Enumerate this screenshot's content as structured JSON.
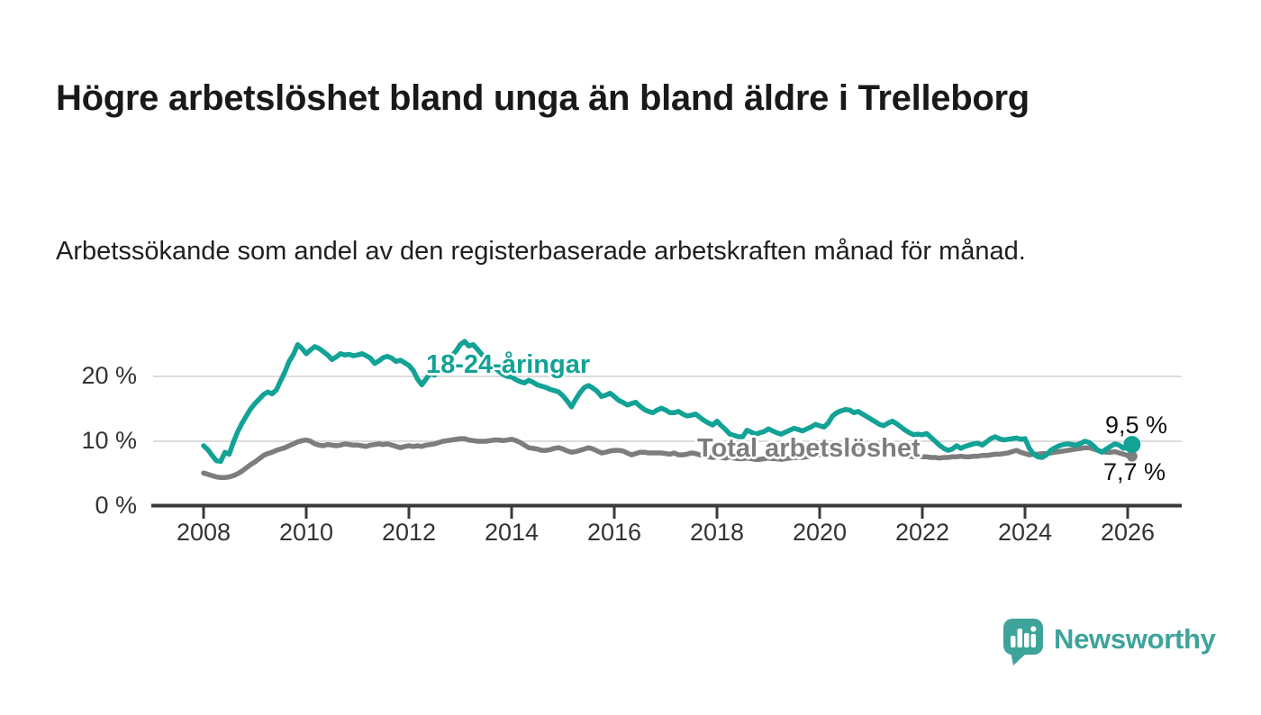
{
  "title": "Högre arbetslöshet bland unga än bland äldre i Trelleborg",
  "subtitle": "Arbetssökande som andel av den registerbaserade arbetskraften månad för månad.",
  "chart_data": {
    "type": "line",
    "title": "Högre arbetslöshet bland unga än bland äldre i Trelleborg",
    "subtitle": "Arbetssökande som andel av den registerbaserade arbetskraften månad för månad.",
    "unit": "%",
    "x_monthly_start": "2008-01",
    "x_monthly_end": "2026-02",
    "x_tick_years": [
      2008,
      2010,
      2012,
      2014,
      2016,
      2018,
      2020,
      2022,
      2024,
      2026
    ],
    "y_ticks": [
      {
        "value": 0,
        "label": "0 %"
      },
      {
        "value": 10,
        "label": "10 %"
      },
      {
        "value": 20,
        "label": "20 %"
      }
    ],
    "ylim": [
      0,
      27
    ],
    "grid": "horizontal-only",
    "legend_position": "inline-labels",
    "colors": {
      "grid": "#dcdcdc",
      "axis": "#3a3a3a",
      "tick_text": "#333333"
    },
    "series": [
      {
        "name": "Total arbetslöshet",
        "color": "#7d7d7d",
        "end_value_label": "7,7 %",
        "end_dot": true,
        "values": [
          5.1,
          4.9,
          4.7,
          4.5,
          4.4,
          4.4,
          4.5,
          4.7,
          5.0,
          5.4,
          5.9,
          6.4,
          6.8,
          7.3,
          7.8,
          8.1,
          8.3,
          8.6,
          8.8,
          9.0,
          9.3,
          9.6,
          9.9,
          10.1,
          10.2,
          10.0,
          9.6,
          9.4,
          9.3,
          9.5,
          9.4,
          9.3,
          9.4,
          9.6,
          9.5,
          9.4,
          9.4,
          9.3,
          9.2,
          9.4,
          9.5,
          9.6,
          9.5,
          9.6,
          9.4,
          9.2,
          9.0,
          9.2,
          9.3,
          9.2,
          9.3,
          9.2,
          9.4,
          9.5,
          9.6,
          9.8,
          10.0,
          10.1,
          10.2,
          10.3,
          10.4,
          10.4,
          10.2,
          10.1,
          10.0,
          10.0,
          10.0,
          10.1,
          10.2,
          10.2,
          10.1,
          10.2,
          10.3,
          10.1,
          9.8,
          9.4,
          9.0,
          8.9,
          8.8,
          8.6,
          8.6,
          8.7,
          8.9,
          9.0,
          8.8,
          8.5,
          8.3,
          8.4,
          8.6,
          8.8,
          9.0,
          8.8,
          8.5,
          8.2,
          8.3,
          8.5,
          8.6,
          8.6,
          8.5,
          8.2,
          7.9,
          8.1,
          8.3,
          8.3,
          8.2,
          8.2,
          8.2,
          8.2,
          8.1,
          8.0,
          8.2,
          7.9,
          7.9,
          8.0,
          8.2,
          8.1,
          7.9,
          7.8,
          7.6,
          7.5,
          7.6,
          7.5,
          7.4,
          7.6,
          7.4,
          7.3,
          7.3,
          7.4,
          7.3,
          7.2,
          7.2,
          7.3,
          7.4,
          7.3,
          7.3,
          7.2,
          7.3,
          7.4,
          7.5,
          7.5,
          7.5,
          7.6,
          7.7,
          7.8,
          7.9,
          7.9,
          8.2,
          8.7,
          9.0,
          9.2,
          9.3,
          9.2,
          9.1,
          9.0,
          8.9,
          8.8,
          8.8,
          8.7,
          8.6,
          8.5,
          8.4,
          8.3,
          8.1,
          8.0,
          7.8,
          7.7,
          7.6,
          7.6,
          7.6,
          7.6,
          7.5,
          7.5,
          7.4,
          7.5,
          7.5,
          7.6,
          7.6,
          7.7,
          7.6,
          7.6,
          7.7,
          7.7,
          7.8,
          7.8,
          7.9,
          8.0,
          8.0,
          8.1,
          8.2,
          8.4,
          8.6,
          8.3,
          8.1,
          7.9,
          8.0,
          8.0,
          8.1,
          8.1,
          8.2,
          8.3,
          8.4,
          8.5,
          8.6,
          8.7,
          8.8,
          8.9,
          9.0,
          9.0,
          8.8,
          8.6,
          8.4,
          8.3,
          8.3,
          8.4,
          8.2,
          8.0,
          7.8,
          7.7
        ]
      },
      {
        "name": "18-24-åringar",
        "color": "#12a296",
        "end_value_label": "9,5 %",
        "end_dot": true,
        "values": [
          9.3,
          8.7,
          7.8,
          7.0,
          6.9,
          8.3,
          8.0,
          9.9,
          11.5,
          12.8,
          13.9,
          15.0,
          15.8,
          16.5,
          17.2,
          17.6,
          17.3,
          17.9,
          19.3,
          20.7,
          22.3,
          23.4,
          24.9,
          24.3,
          23.5,
          24.1,
          24.6,
          24.3,
          23.8,
          23.3,
          22.6,
          23.0,
          23.5,
          23.3,
          23.4,
          23.2,
          23.3,
          23.5,
          23.2,
          22.8,
          22.0,
          22.4,
          22.9,
          23.1,
          22.8,
          22.3,
          22.5,
          22.1,
          21.7,
          20.9,
          19.6,
          18.7,
          19.6,
          20.5,
          20.2,
          21.0,
          21.8,
          22.5,
          23.2,
          23.9,
          24.9,
          25.4,
          24.7,
          24.9,
          24.2,
          23.4,
          22.7,
          22.1,
          21.4,
          20.8,
          20.3,
          20.0,
          19.9,
          19.5,
          19.2,
          19.0,
          19.4,
          19.1,
          18.7,
          18.5,
          18.3,
          18.0,
          17.8,
          17.6,
          17.0,
          16.2,
          15.3,
          16.5,
          17.5,
          18.3,
          18.6,
          18.2,
          17.7,
          16.9,
          17.1,
          17.4,
          16.9,
          16.3,
          16.0,
          15.6,
          15.8,
          16.0,
          15.4,
          14.9,
          14.6,
          14.4,
          14.8,
          15.1,
          14.8,
          14.4,
          14.4,
          14.6,
          14.2,
          13.9,
          14.0,
          14.2,
          13.7,
          13.2,
          12.8,
          12.5,
          13.1,
          12.4,
          11.8,
          11.1,
          10.9,
          10.7,
          10.7,
          11.7,
          11.4,
          11.1,
          11.3,
          11.5,
          11.9,
          11.6,
          11.3,
          11.1,
          11.4,
          11.7,
          12.0,
          11.8,
          11.6,
          11.9,
          12.2,
          12.6,
          12.4,
          12.2,
          12.8,
          13.9,
          14.4,
          14.7,
          14.9,
          14.8,
          14.4,
          14.6,
          14.2,
          13.8,
          13.4,
          13.0,
          12.6,
          12.4,
          12.8,
          13.1,
          12.7,
          12.2,
          11.7,
          11.3,
          11.0,
          11.1,
          11.0,
          11.2,
          10.6,
          10.0,
          9.4,
          8.9,
          8.6,
          8.8,
          9.3,
          8.9,
          9.2,
          9.4,
          9.6,
          9.7,
          9.4,
          9.9,
          10.4,
          10.7,
          10.4,
          10.2,
          10.3,
          10.4,
          10.5,
          10.3,
          10.4,
          8.9,
          8.0,
          7.6,
          7.5,
          7.9,
          8.6,
          9.0,
          9.3,
          9.5,
          9.6,
          9.5,
          9.4,
          9.7,
          10.0,
          9.8,
          9.3,
          8.6,
          8.3,
          8.8,
          9.2,
          9.6,
          9.4,
          8.9,
          9.1,
          9.5
        ]
      }
    ]
  },
  "branding": {
    "name": "Newsworthy",
    "color": "#3ea39b",
    "icon": "speech-bubble-bar-chart-icon"
  }
}
